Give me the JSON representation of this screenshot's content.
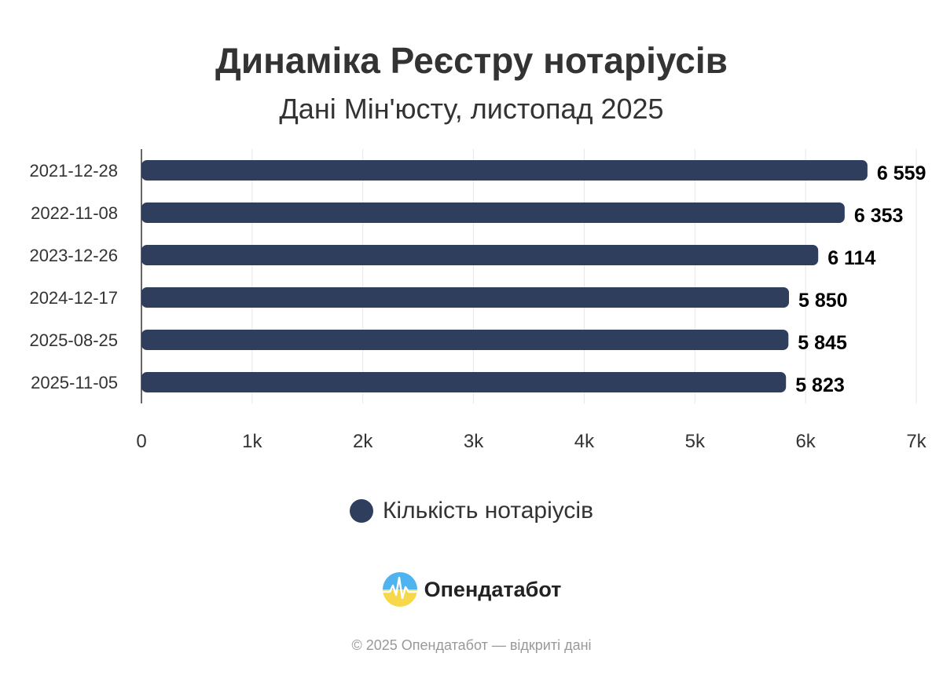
{
  "header": {
    "title": "Динаміка Реєстру нотаріусів",
    "subtitle": "Дані Мін'юсту, листопад 2025"
  },
  "chart_data": {
    "type": "bar",
    "orientation": "horizontal",
    "title": "Динаміка Реєстру нотаріусів",
    "subtitle": "Дані Мін'юсту, листопад 2025",
    "categories": [
      "2021-12-28",
      "2022-11-08",
      "2023-12-26",
      "2024-12-17",
      "2025-08-25",
      "2025-11-05"
    ],
    "series": [
      {
        "name": "Кількість нотаріусів",
        "values": [
          6559,
          6353,
          6114,
          5850,
          5845,
          5823
        ],
        "labels": [
          "6 559",
          "6 353",
          "6 114",
          "5 850",
          "5 845",
          "5 823"
        ],
        "color": "#2e3e5c"
      }
    ],
    "xlim": [
      0,
      7000
    ],
    "x_ticks": [
      0,
      1000,
      2000,
      3000,
      4000,
      5000,
      6000,
      7000
    ],
    "x_tick_labels": [
      "0",
      "1k",
      "2k",
      "3k",
      "4k",
      "5k",
      "6k",
      "7k"
    ],
    "grid": true,
    "legend": "bottom-center"
  },
  "legend": {
    "label": "Кількість нотаріусів"
  },
  "brand": {
    "name": "Опендатабот"
  },
  "footer": {
    "text": "© 2025 Опендатабот — відкриті дані"
  }
}
